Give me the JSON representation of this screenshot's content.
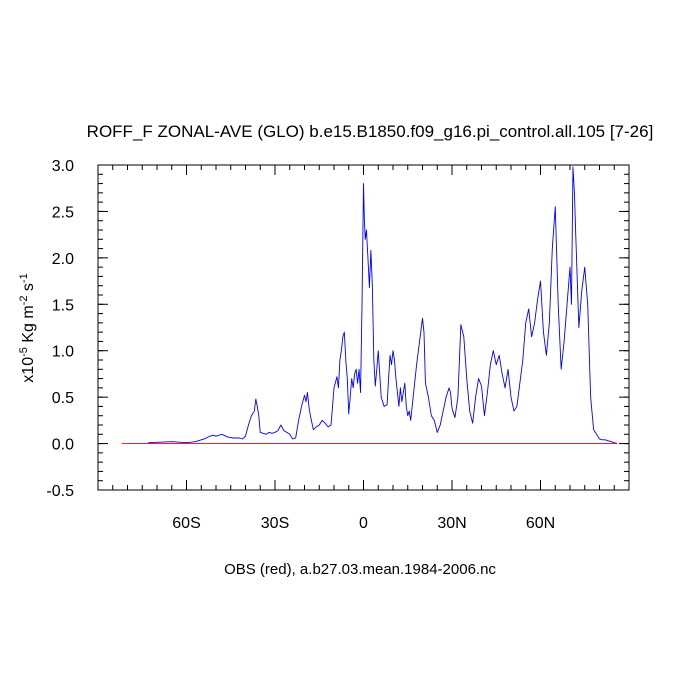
{
  "chart_data": {
    "type": "line",
    "title": "ROFF_F ZONAL-AVE (GLO) b.e15.B1850.f09_g16.pi_control.all.105 [7-26]",
    "ylabel": {
      "prefix": "x10",
      "exp": "-5",
      "unit": " Kg m",
      "unit_exp": "-2",
      "unit2": " s",
      "unit2_exp": "-1"
    },
    "footer": "OBS (red), a.b27.03.mean.1984-2006.nc",
    "xlim": [
      -90,
      90
    ],
    "ylim": [
      -0.5,
      3.0
    ],
    "x_ticks": [
      {
        "value": -60,
        "label": "60S"
      },
      {
        "value": -30,
        "label": "30S"
      },
      {
        "value": 0,
        "label": "0"
      },
      {
        "value": 30,
        "label": "30N"
      },
      {
        "value": 60,
        "label": "60N"
      }
    ],
    "y_ticks": [
      {
        "value": -0.5,
        "label": "-0.5"
      },
      {
        "value": 0.0,
        "label": "0.0"
      },
      {
        "value": 0.5,
        "label": "0.5"
      },
      {
        "value": 1.0,
        "label": "1.0"
      },
      {
        "value": 1.5,
        "label": "1.5"
      },
      {
        "value": 2.0,
        "label": "2.0"
      },
      {
        "value": 2.5,
        "label": "2.5"
      },
      {
        "value": 3.0,
        "label": "3.0"
      }
    ],
    "series": [
      {
        "color": "#0000ff",
        "x": [
          -73,
          -65,
          -60,
          -57,
          -54,
          -52,
          -51,
          -50,
          -48,
          -46,
          -44,
          -42,
          -41,
          -40,
          -39,
          -38,
          -37,
          -36.5,
          -36,
          -35.5,
          -35,
          -34,
          -33,
          -32,
          -31,
          -30,
          -29,
          -28,
          -27,
          -26,
          -25,
          -24,
          -23,
          -22,
          -21,
          -20,
          -19.5,
          -19,
          -18.5,
          -18,
          -17,
          -16,
          -15,
          -14,
          -13,
          -12,
          -11,
          -10,
          -9,
          -8.5,
          -8,
          -7.5,
          -7,
          -6.5,
          -6,
          -5.5,
          -5,
          -4.5,
          -4,
          -3.5,
          -3,
          -2.5,
          -2,
          -1.5,
          -1,
          -0.5,
          0,
          0.3,
          0.6,
          1,
          1.5,
          2,
          2.5,
          3,
          3.5,
          4,
          4.5,
          5,
          5.5,
          6,
          7,
          8,
          8.5,
          9,
          9.5,
          10,
          10.5,
          11,
          12,
          12.5,
          13,
          14,
          14.5,
          15,
          15.5,
          16,
          17,
          18,
          19,
          20,
          20.5,
          21,
          22,
          23,
          24,
          25,
          26,
          27,
          28,
          29,
          29.5,
          30,
          31,
          32,
          33,
          34,
          35,
          36,
          37,
          38,
          39,
          40,
          41,
          42,
          43,
          44,
          45,
          46,
          47,
          48,
          49,
          50,
          51,
          52,
          53,
          54,
          55,
          56,
          57,
          58,
          59,
          60,
          61,
          62,
          63,
          64,
          65,
          66,
          67,
          68,
          69,
          70,
          70.5,
          71,
          71.5,
          72,
          73,
          74,
          75,
          76,
          77,
          78,
          79,
          80,
          81,
          82,
          83,
          84,
          85,
          86
        ],
        "y": [
          0.01,
          0.02,
          0.01,
          0.02,
          0.05,
          0.08,
          0.09,
          0.08,
          0.1,
          0.07,
          0.06,
          0.06,
          0.05,
          0.08,
          0.2,
          0.3,
          0.35,
          0.48,
          0.4,
          0.3,
          0.12,
          0.11,
          0.1,
          0.12,
          0.11,
          0.12,
          0.14,
          0.2,
          0.14,
          0.12,
          0.1,
          0.05,
          0.06,
          0.25,
          0.4,
          0.52,
          0.45,
          0.55,
          0.4,
          0.3,
          0.15,
          0.18,
          0.2,
          0.25,
          0.22,
          0.18,
          0.2,
          0.6,
          0.72,
          0.6,
          0.9,
          1.0,
          1.15,
          1.2,
          0.9,
          0.7,
          0.32,
          0.5,
          0.7,
          0.6,
          0.75,
          0.8,
          0.65,
          0.8,
          0.55,
          1.5,
          2.8,
          2.4,
          2.2,
          2.3,
          2.0,
          1.68,
          2.08,
          1.7,
          0.9,
          0.62,
          0.8,
          1.0,
          0.75,
          0.5,
          0.4,
          0.42,
          0.7,
          0.95,
          0.85,
          1.0,
          0.9,
          0.7,
          0.4,
          0.6,
          0.45,
          0.65,
          0.4,
          0.3,
          0.35,
          0.25,
          0.55,
          0.85,
          1.1,
          1.35,
          1.2,
          0.65,
          0.5,
          0.3,
          0.25,
          0.12,
          0.2,
          0.35,
          0.5,
          0.6,
          0.55,
          0.38,
          0.28,
          0.5,
          1.28,
          1.15,
          0.7,
          0.35,
          0.22,
          0.5,
          0.7,
          0.62,
          0.3,
          0.55,
          0.85,
          1.0,
          0.85,
          0.95,
          0.75,
          0.6,
          0.8,
          0.5,
          0.35,
          0.4,
          0.65,
          0.9,
          1.3,
          1.45,
          1.15,
          1.3,
          1.55,
          1.75,
          1.2,
          0.95,
          1.3,
          2.1,
          2.55,
          1.5,
          0.8,
          1.1,
          1.5,
          1.9,
          1.5,
          2.98,
          2.7,
          2.2,
          1.25,
          1.65,
          1.9,
          1.5,
          0.5,
          0.15,
          0.1,
          0.05,
          0.04,
          0.04,
          0.03,
          0.02,
          0.01,
          0.0
        ]
      },
      {
        "color": "#ff0000",
        "x": [
          -82,
          86
        ],
        "y": [
          0.0,
          0.0
        ]
      }
    ]
  }
}
